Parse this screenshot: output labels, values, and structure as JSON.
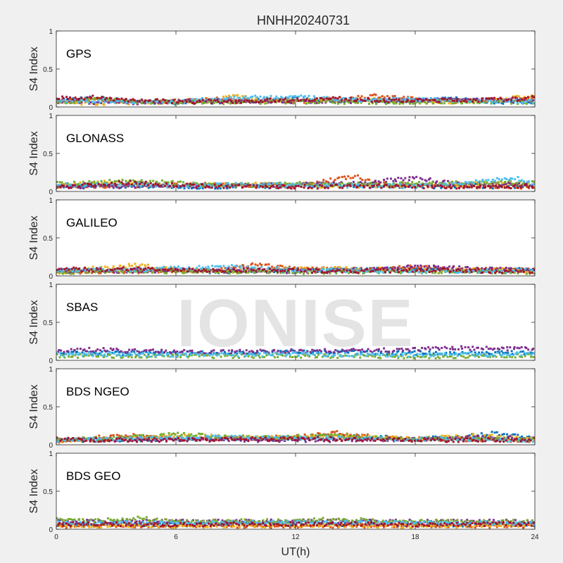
{
  "watermark": "IONISE",
  "colors": {
    "background": "#f0f0f0",
    "axes_face": "#ffffff",
    "axes_edge": "#262626",
    "series": [
      "#0072BD",
      "#D95319",
      "#EDB120",
      "#7E2F8E",
      "#77AC30",
      "#4DBEEE",
      "#A2142F"
    ]
  },
  "chart_data": {
    "type": "scatter",
    "title": "HNHH20240731",
    "xlabel": "UT(h)",
    "ylabel": "S4 Index",
    "xlim": [
      0,
      24
    ],
    "ylim": [
      0,
      1
    ],
    "x_ticks": [
      0,
      6,
      12,
      18,
      24
    ],
    "x_tick_labels": [
      "0",
      "6",
      "12",
      "18",
      "24"
    ],
    "y_ticks": [
      0,
      0.5,
      1
    ],
    "y_tick_labels": [
      "0",
      "0.5",
      "1"
    ],
    "grid": false,
    "legend": "none",
    "panels": [
      {
        "label": "GPS",
        "series": [
          {
            "color_index": 0,
            "x": [
              0,
              2,
              4,
              6,
              8,
              10,
              12,
              14,
              16,
              18,
              19,
              20,
              21,
              22,
              23,
              24
            ],
            "y": [
              0.09,
              0.12,
              0.07,
              0.06,
              0.07,
              0.08,
              0.11,
              0.09,
              0.07,
              0.08,
              0.1,
              0.12,
              0.09,
              0.07,
              0.06,
              0.07
            ]
          },
          {
            "color_index": 1,
            "x": [
              0,
              2,
              4,
              6,
              8,
              10,
              12,
              14,
              16,
              18,
              20,
              22,
              24
            ],
            "y": [
              0.08,
              0.09,
              0.07,
              0.08,
              0.1,
              0.08,
              0.07,
              0.1,
              0.15,
              0.1,
              0.08,
              0.09,
              0.11
            ]
          },
          {
            "color_index": 2,
            "x": [
              0,
              2,
              4,
              6,
              8,
              9,
              10,
              12,
              14,
              16,
              18,
              20,
              22,
              24
            ],
            "y": [
              0.06,
              0.05,
              0.06,
              0.07,
              0.09,
              0.15,
              0.1,
              0.08,
              0.09,
              0.1,
              0.07,
              0.06,
              0.1,
              0.14
            ]
          },
          {
            "color_index": 3,
            "x": [
              0,
              4,
              8,
              12,
              16,
              20,
              24
            ],
            "y": [
              0.07,
              0.06,
              0.08,
              0.07,
              0.08,
              0.09,
              0.08
            ]
          },
          {
            "color_index": 4,
            "x": [
              0,
              2,
              4,
              8,
              12,
              16,
              20,
              24
            ],
            "y": [
              0.06,
              0.1,
              0.07,
              0.06,
              0.07,
              0.06,
              0.07,
              0.06
            ]
          },
          {
            "color_index": 5,
            "x": [
              0,
              6,
              9,
              12,
              15,
              18,
              24
            ],
            "y": [
              0.08,
              0.07,
              0.12,
              0.13,
              0.09,
              0.1,
              0.07
            ]
          },
          {
            "color_index": 6,
            "x": [
              0,
              1,
              2,
              3,
              5,
              7,
              10,
              14,
              17,
              20,
              23,
              24
            ],
            "y": [
              0.12,
              0.11,
              0.13,
              0.1,
              0.08,
              0.07,
              0.08,
              0.11,
              0.08,
              0.09,
              0.1,
              0.12
            ]
          }
        ]
      },
      {
        "label": "GLONASS",
        "series": [
          {
            "color_index": 0,
            "x": [
              0,
              4,
              8,
              12,
              16,
              20,
              24
            ],
            "y": [
              0.08,
              0.07,
              0.06,
              0.07,
              0.08,
              0.06,
              0.07
            ]
          },
          {
            "color_index": 1,
            "x": [
              0,
              4,
              8,
              12,
              15,
              16,
              20,
              24
            ],
            "y": [
              0.06,
              0.07,
              0.09,
              0.07,
              0.2,
              0.1,
              0.07,
              0.06
            ]
          },
          {
            "color_index": 2,
            "x": [
              0,
              2,
              6,
              10,
              14,
              18,
              22,
              24
            ],
            "y": [
              0.07,
              0.12,
              0.08,
              0.09,
              0.07,
              0.08,
              0.1,
              0.08
            ]
          },
          {
            "color_index": 3,
            "x": [
              0,
              5,
              10,
              15,
              18,
              20,
              24
            ],
            "y": [
              0.06,
              0.07,
              0.08,
              0.1,
              0.18,
              0.1,
              0.09
            ]
          },
          {
            "color_index": 4,
            "x": [
              0,
              2,
              4,
              8,
              12,
              16,
              20,
              24
            ],
            "y": [
              0.1,
              0.12,
              0.14,
              0.08,
              0.1,
              0.09,
              0.11,
              0.12
            ]
          },
          {
            "color_index": 5,
            "x": [
              0,
              3,
              6,
              9,
              12,
              16,
              20,
              23,
              24
            ],
            "y": [
              0.08,
              0.1,
              0.07,
              0.09,
              0.08,
              0.07,
              0.09,
              0.18,
              0.1
            ]
          },
          {
            "color_index": 6,
            "x": [
              0,
              4,
              6,
              8,
              12,
              16,
              20,
              24
            ],
            "y": [
              0.06,
              0.12,
              0.08,
              0.07,
              0.06,
              0.07,
              0.06,
              0.07
            ]
          }
        ]
      },
      {
        "label": "GALILEO",
        "series": [
          {
            "color_index": 0,
            "x": [
              0,
              4,
              8,
              12,
              16,
              18,
              20,
              24
            ],
            "y": [
              0.06,
              0.07,
              0.06,
              0.07,
              0.08,
              0.1,
              0.07,
              0.08
            ]
          },
          {
            "color_index": 1,
            "x": [
              0,
              4,
              8,
              10,
              12,
              14,
              16,
              18,
              20,
              22,
              24
            ],
            "y": [
              0.05,
              0.06,
              0.07,
              0.15,
              0.1,
              0.09,
              0.08,
              0.12,
              0.09,
              0.08,
              0.07
            ]
          },
          {
            "color_index": 2,
            "x": [
              0,
              2,
              4,
              6,
              8,
              12,
              14,
              18,
              22,
              24
            ],
            "y": [
              0.05,
              0.1,
              0.14,
              0.08,
              0.06,
              0.09,
              0.1,
              0.07,
              0.09,
              0.06
            ]
          },
          {
            "color_index": 3,
            "x": [
              0,
              6,
              12,
              16,
              18,
              24
            ],
            "y": [
              0.06,
              0.07,
              0.06,
              0.08,
              0.12,
              0.07
            ]
          },
          {
            "color_index": 4,
            "x": [
              0,
              6,
              12,
              18,
              24
            ],
            "y": [
              0.05,
              0.06,
              0.05,
              0.06,
              0.05
            ]
          },
          {
            "color_index": 5,
            "x": [
              0,
              2,
              4,
              6,
              9,
              12,
              16,
              20,
              24
            ],
            "y": [
              0.07,
              0.09,
              0.08,
              0.1,
              0.12,
              0.08,
              0.07,
              0.06,
              0.07
            ]
          },
          {
            "color_index": 6,
            "x": [
              0,
              2,
              4,
              6,
              10,
              14,
              18,
              24
            ],
            "y": [
              0.09,
              0.08,
              0.1,
              0.07,
              0.08,
              0.06,
              0.07,
              0.06
            ]
          }
        ]
      },
      {
        "label": "SBAS",
        "series": [
          {
            "color_index": 0,
            "x": [
              0,
              4,
              8,
              12,
              16,
              20,
              24
            ],
            "y": [
              0.1,
              0.09,
              0.1,
              0.11,
              0.1,
              0.09,
              0.1
            ]
          },
          {
            "color_index": 3,
            "x": [
              0,
              2,
              4,
              8,
              12,
              16,
              20,
              24
            ],
            "y": [
              0.13,
              0.14,
              0.12,
              0.11,
              0.12,
              0.13,
              0.16,
              0.15
            ]
          },
          {
            "color_index": 4,
            "x": [
              0,
              6,
              12,
              18,
              24
            ],
            "y": [
              0.06,
              0.05,
              0.06,
              0.05,
              0.06
            ]
          },
          {
            "color_index": 5,
            "x": [
              0,
              6,
              12,
              18,
              24
            ],
            "y": [
              0.08,
              0.07,
              0.08,
              0.07,
              0.08
            ]
          }
        ]
      },
      {
        "label": "BDS NGEO",
        "series": [
          {
            "color_index": 0,
            "x": [
              0,
              4,
              8,
              12,
              14,
              16,
              18,
              20,
              22,
              24
            ],
            "y": [
              0.06,
              0.07,
              0.08,
              0.07,
              0.12,
              0.1,
              0.08,
              0.09,
              0.15,
              0.08
            ]
          },
          {
            "color_index": 1,
            "x": [
              0,
              2,
              4,
              6,
              8,
              12,
              14,
              16,
              20,
              24
            ],
            "y": [
              0.05,
              0.1,
              0.13,
              0.09,
              0.08,
              0.1,
              0.16,
              0.1,
              0.07,
              0.06
            ]
          },
          {
            "color_index": 2,
            "x": [
              0,
              4,
              6,
              10,
              14,
              18,
              21,
              24
            ],
            "y": [
              0.06,
              0.08,
              0.12,
              0.09,
              0.1,
              0.08,
              0.12,
              0.07
            ]
          },
          {
            "color_index": 3,
            "x": [
              0,
              6,
              12,
              18,
              22,
              24
            ],
            "y": [
              0.06,
              0.07,
              0.06,
              0.07,
              0.1,
              0.07
            ]
          },
          {
            "color_index": 4,
            "x": [
              0,
              4,
              6,
              10,
              14,
              18,
              24
            ],
            "y": [
              0.07,
              0.1,
              0.14,
              0.09,
              0.12,
              0.08,
              0.07
            ]
          },
          {
            "color_index": 5,
            "x": [
              0,
              4,
              8,
              12,
              16,
              20,
              24
            ],
            "y": [
              0.06,
              0.08,
              0.1,
              0.09,
              0.08,
              0.07,
              0.06
            ]
          },
          {
            "color_index": 6,
            "x": [
              0,
              4,
              8,
              12,
              16,
              20,
              24
            ],
            "y": [
              0.07,
              0.06,
              0.07,
              0.08,
              0.07,
              0.06,
              0.07
            ]
          }
        ]
      },
      {
        "label": "BDS GEO",
        "series": [
          {
            "color_index": 0,
            "x": [
              0,
              6,
              12,
              18,
              24
            ],
            "y": [
              0.06,
              0.06,
              0.07,
              0.06,
              0.06
            ]
          },
          {
            "color_index": 1,
            "x": [
              0,
              6,
              12,
              18,
              24
            ],
            "y": [
              0.04,
              0.05,
              0.04,
              0.05,
              0.04
            ]
          },
          {
            "color_index": 2,
            "x": [
              0,
              6,
              12,
              18,
              24
            ],
            "y": [
              0.05,
              0.04,
              0.05,
              0.04,
              0.05
            ]
          },
          {
            "color_index": 3,
            "x": [
              0,
              6,
              12,
              18,
              24
            ],
            "y": [
              0.1,
              0.1,
              0.11,
              0.1,
              0.1
            ]
          },
          {
            "color_index": 4,
            "x": [
              0,
              2,
              4,
              6,
              12,
              14,
              18,
              24
            ],
            "y": [
              0.12,
              0.11,
              0.15,
              0.1,
              0.11,
              0.13,
              0.1,
              0.1
            ]
          },
          {
            "color_index": 5,
            "x": [
              0,
              6,
              12,
              18,
              24
            ],
            "y": [
              0.08,
              0.08,
              0.09,
              0.08,
              0.08
            ]
          },
          {
            "color_index": 6,
            "x": [
              0,
              6,
              12,
              18,
              24
            ],
            "y": [
              0.07,
              0.06,
              0.07,
              0.06,
              0.07
            ]
          }
        ]
      }
    ]
  }
}
